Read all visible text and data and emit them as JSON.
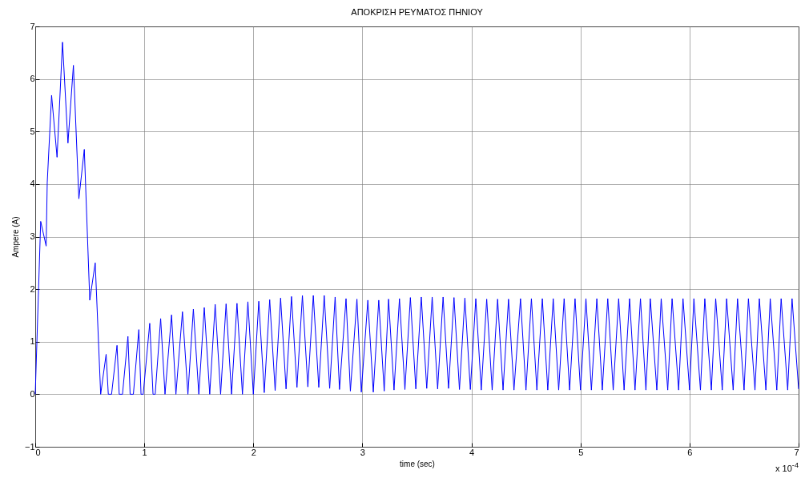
{
  "chart_data": {
    "type": "line",
    "title": "ΑΠΟΚΡΙΣΗ ΡΕΥΜΑΤΟΣ ΠΗΝΙΟΥ",
    "xlabel": "time (sec)",
    "ylabel": "Ampere (A)",
    "annotations": [
      "x 10$^{-4}$"
    ],
    "xlim": [
      0,
      7
    ],
    "xticks": [
      0,
      1,
      2,
      3,
      4,
      5,
      6,
      7
    ],
    "ylim": [
      -1,
      7
    ],
    "yticks": [
      -1,
      0,
      1,
      2,
      3,
      4,
      5,
      6,
      7
    ],
    "grid": true,
    "legend": false,
    "series": [
      {
        "color": "#0000ff",
        "x": [
          0,
          0.05,
          0.1,
          0.11,
          0.15,
          0.2,
          0.25,
          0.3,
          0.35,
          0.4,
          0.45,
          0.5,
          0.55,
          0.6,
          0.65,
          0.67,
          0.7,
          0.75,
          0.77,
          0.8,
          0.85,
          0.87,
          0.9,
          0.95,
          0.97,
          0.99,
          1.05,
          1.08,
          1.1,
          1.15,
          1.19,
          1.25,
          1.29,
          1.35,
          1.4,
          1.45,
          1.5,
          1.55,
          1.6,
          1.65,
          1.7,
          1.75,
          1.8,
          1.85,
          1.9,
          1.95,
          2.0,
          2.05,
          2.1,
          2.15,
          2.2,
          2.25,
          2.3,
          2.35,
          2.4,
          2.45,
          2.5,
          2.55,
          2.6,
          2.65,
          2.7,
          2.75,
          2.79,
          2.85,
          2.89,
          2.95,
          2.99,
          3.05,
          3.1,
          3.15,
          3.2,
          3.24,
          3.29,
          3.34,
          3.39,
          3.44,
          3.49,
          3.54,
          3.59,
          3.64,
          3.69,
          3.74,
          3.79,
          3.84,
          3.89,
          3.94,
          3.99,
          4.04,
          4.09,
          4.14,
          4.19,
          4.24,
          4.29,
          4.34,
          4.39,
          4.45,
          4.5,
          4.55,
          4.6,
          4.65,
          4.7,
          4.75,
          4.8,
          4.85,
          4.9,
          4.95,
          5.0,
          5.05,
          5.1,
          5.15,
          5.2,
          5.25,
          5.3,
          5.35,
          5.4,
          5.45,
          5.5,
          5.55,
          5.6,
          5.64,
          5.7,
          5.74,
          5.8,
          5.84,
          5.9,
          5.94,
          6.0,
          6.04,
          6.1,
          6.14,
          6.2,
          6.24,
          6.3,
          6.34,
          6.4,
          6.44,
          6.5,
          6.54,
          6.6,
          6.64,
          6.7,
          6.74,
          6.8,
          6.84,
          6.9,
          6.94,
          7.0
        ],
        "values": [
          0,
          3.29,
          2.82,
          4.03,
          5.69,
          4.51,
          6.7,
          4.78,
          6.26,
          3.72,
          4.66,
          1.79,
          2.5,
          0,
          0.76,
          0,
          0,
          0.93,
          0,
          0,
          1.1,
          0,
          0,
          1.23,
          0,
          0,
          1.35,
          0,
          0,
          1.44,
          0,
          1.51,
          0,
          1.57,
          0,
          1.62,
          0,
          1.65,
          0,
          1.71,
          0,
          1.72,
          0,
          1.73,
          0,
          1.76,
          0,
          1.77,
          0.03,
          1.8,
          0.07,
          1.83,
          0.1,
          1.86,
          0.13,
          1.88,
          0.14,
          1.88,
          0.13,
          1.88,
          0.11,
          1.85,
          0.09,
          1.82,
          0.06,
          1.81,
          0.04,
          1.79,
          0.04,
          1.79,
          0.06,
          1.81,
          0.08,
          1.82,
          0.09,
          1.84,
          0.1,
          1.85,
          0.11,
          1.85,
          0.1,
          1.85,
          0.11,
          1.84,
          0.09,
          1.83,
          0.09,
          1.82,
          0.08,
          1.81,
          0.08,
          1.81,
          0.08,
          1.81,
          0.08,
          1.82,
          0.08,
          1.82,
          0.08,
          1.82,
          0.08,
          1.82,
          0.08,
          1.82,
          0.08,
          1.82,
          0.08,
          1.82,
          0.08,
          1.82,
          0.08,
          1.82,
          0.08,
          1.82,
          0.08,
          1.82,
          0.08,
          1.82,
          0.08,
          1.82,
          0.08,
          1.82,
          0.08,
          1.82,
          0.08,
          1.82,
          0.08,
          1.82,
          0.08,
          1.82,
          0.08,
          1.82,
          0.08,
          1.82,
          0.08,
          1.82,
          0.08,
          1.82,
          0.08,
          1.82,
          0.08,
          1.82,
          0.08,
          1.82,
          0.08,
          1.82,
          0.1
        ]
      }
    ]
  }
}
